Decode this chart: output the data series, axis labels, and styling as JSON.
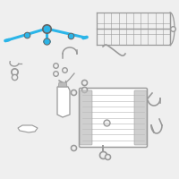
{
  "background_color": "#efefef",
  "highlight_color": "#2bb5e8",
  "line_color": "#999999",
  "dark_color": "#666666",
  "mid_color": "#bbbbbb",
  "figsize": [
    2.0,
    2.0
  ],
  "dpi": 100
}
